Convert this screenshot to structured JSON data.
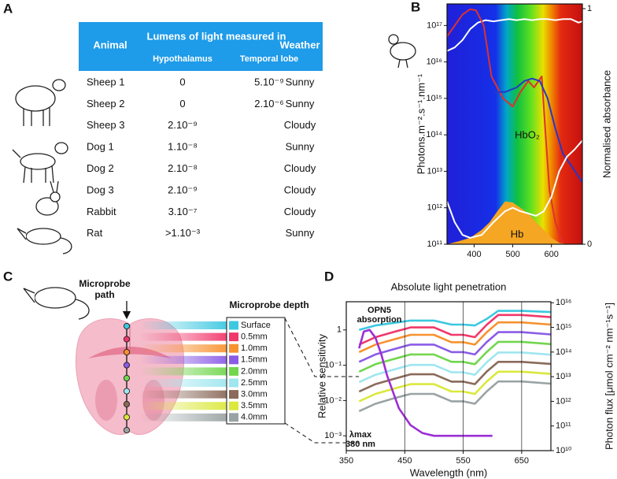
{
  "panel_labels": [
    "A",
    "B",
    "C",
    "D"
  ],
  "table": {
    "header": {
      "animal": "Animal",
      "measured_in": "Lumens of light measured in",
      "hypothalamus": "Hypothalamus",
      "temporal_lobe": "Temporal lobe",
      "weather": "Weather"
    },
    "rows": [
      [
        "Sheep 1",
        "0",
        "5.10⁻⁹",
        "Sunny"
      ],
      [
        "Sheep 2",
        "0",
        "2.10⁻⁶",
        "Sunny"
      ],
      [
        "Sheep 3",
        "2.10⁻⁹",
        null,
        "Cloudy"
      ],
      [
        "Dog 1",
        "1.10⁻⁸",
        null,
        "Sunny"
      ],
      [
        "Dog 2",
        "2.10⁻⁸",
        null,
        "Cloudy"
      ],
      [
        "Dog 3",
        "2.10⁻⁹",
        null,
        "Cloudy"
      ],
      [
        "Rabbit",
        "3.10⁻⁷",
        null,
        "Cloudy"
      ],
      [
        "Rat",
        ">1.10⁻³",
        null,
        "Sunny"
      ]
    ]
  },
  "diagram": {
    "probe_label": [
      "Microprobe",
      "path"
    ],
    "depth_title": "Microprobe depth"
  },
  "chart_data": [
    {
      "type": "line",
      "ylabel": "Photons.m⁻².s⁻¹.nm⁻¹",
      "y2label": "Normalised absorbance",
      "annotations": [
        "HbO₂",
        "Hb"
      ],
      "xlim": [
        330,
        680
      ],
      "xticks": [
        400,
        500,
        600
      ],
      "ylim": [
        100000000000,
        3.9e+17
      ],
      "ylog": true,
      "yticks": [
        {
          "value": 100000000000.0,
          "label": "10¹¹"
        },
        {
          "value": 1000000000000.0,
          "label": "10¹²"
        },
        {
          "value": 10000000000000.0,
          "label": "10¹³"
        },
        {
          "value": 100000000000000.0,
          "label": "10¹⁴"
        },
        {
          "value": 1000000000000000.0,
          "label": "10¹⁵"
        },
        {
          "value": 1e+16,
          "label": "10¹⁶"
        },
        {
          "value": 1e+17,
          "label": "10¹⁷"
        }
      ],
      "y2lim": [
        0,
        1.02
      ],
      "y2ticks": [
        0,
        1
      ],
      "series": [
        {
          "color": "#ffffff",
          "x": [
            330,
            350,
            370,
            390,
            410,
            430,
            450,
            470,
            490,
            510,
            530,
            550,
            570,
            590,
            610,
            630,
            650,
            670,
            680
          ],
          "values": [
            2e+16,
            2.5e+16,
            4e+16,
            8e+16,
            1.2e+17,
            1.4e+17,
            1.3e+17,
            1.4e+17,
            1.5e+17,
            1.4e+17,
            1.5e+17,
            1.4e+17,
            1.5e+17,
            1.5e+17,
            1.4e+17,
            1.5e+17,
            1.5e+17,
            1.2e+17,
            1.3e+17
          ]
        },
        {
          "color": "#e0312b",
          "x": [
            330,
            350,
            370,
            390,
            405,
            425,
            445,
            475,
            500,
            520,
            540,
            555,
            575,
            585,
            595,
            610,
            630
          ],
          "values": [
            5e+16,
            1e+17,
            2e+17,
            2.8e+17,
            2.6e+17,
            1e+17,
            4000000000000000.0,
            1000000000000000.0,
            600000000000000.0,
            1500000000000000.0,
            3000000000000000.0,
            2000000000000000.0,
            4000000000000000.0,
            100000000000000.0,
            3000000000000.0,
            400000000000.0,
            100000000000.0
          ]
        },
        {
          "color": "#2438c8",
          "x": [
            450,
            480,
            510,
            530,
            550,
            570,
            590,
            610,
            630,
            650,
            680
          ],
          "values": [
            1500000000000000.0,
            1500000000000000.0,
            2000000000000000.0,
            3000000000000000.0,
            3500000000000000.0,
            3000000000000000.0,
            1000000000000000.0,
            150000000000000.0,
            30000000000000.0,
            15000000000000.0,
            5000000000000.0
          ]
        },
        {
          "color": "#f5a623",
          "style": "area",
          "x": [
            330,
            360,
            390,
            420,
            440,
            460,
            480,
            500,
            520,
            540,
            560,
            580,
            600,
            620,
            640
          ],
          "values": [
            100000000000.0,
            120000000000.0,
            150000000000.0,
            250000000000.0,
            400000000000.0,
            800000000000.0,
            1500000000000.0,
            1400000000000.0,
            1000000000000.0,
            700000000000.0,
            400000000000.0,
            250000000000.0,
            150000000000.0,
            110000000000.0,
            100000000000.0
          ]
        },
        {
          "color": "#ffffff",
          "x": [
            330,
            350,
            370,
            390,
            420,
            450,
            480,
            500,
            520,
            540,
            560,
            580,
            600,
            620,
            640,
            660,
            680
          ],
          "values": [
            1500000000000.0,
            400000000000.0,
            180000000000.0,
            150000000000.0,
            180000000000.0,
            400000000000.0,
            800000000000.0,
            1000000000000.0,
            800000000000.0,
            700000000000.0,
            600000000000.0,
            800000000000.0,
            2000000000000.0,
            10000000000000.0,
            25000000000000.0,
            40000000000000.0,
            70000000000000.0
          ]
        }
      ]
    },
    {
      "type": "line",
      "title": "Absolute light penetration",
      "xlabel": "Wavelength (nm)",
      "ylabel": "Relative sensitivity",
      "y2label": "Photon flux [μmol cm⁻² nm⁻¹s⁻¹]",
      "annotations": [
        "absorption",
        "λmax",
        "380 nm"
      ],
      "xlim": [
        350,
        700
      ],
      "xticks": [
        350,
        450,
        550,
        650
      ],
      "xgrid": true,
      "ylim": [
        0.00038,
        6.3
      ],
      "ylog": true,
      "yticks": [
        {
          "value": 0.001,
          "label": "10⁻³"
        },
        {
          "value": 0.01,
          "label": "10⁻²"
        },
        {
          "value": 0.1,
          "label": "10⁻¹"
        },
        1
      ],
      "y2lim": [
        10000000000,
        1.1e+16
      ],
      "y2log": true,
      "y2ticks": [
        {
          "value": 10000000000.0,
          "label": "10¹⁰"
        },
        {
          "value": 100000000000.0,
          "label": "10¹¹"
        },
        {
          "value": 1000000000000.0,
          "label": "10¹²"
        },
        {
          "value": 10000000000000.0,
          "label": "10¹³"
        },
        {
          "value": 100000000000000.0,
          "label": "10¹⁴"
        },
        {
          "value": 1000000000000000.0,
          "label": "10¹⁵"
        },
        {
          "value": 1e+16,
          "label": "10¹⁶"
        }
      ],
      "x": [
        372,
        400,
        430,
        460,
        500,
        530,
        550,
        570,
        590,
        610,
        650,
        700
      ],
      "series": [
        {
          "name": "Surface",
          "color": "#3cc8e0",
          "axis": "y2",
          "values": [
            790000000000000.0,
            1200000000000000.0,
            1500000000000000.0,
            1900000000000000.0,
            1900000000000000.0,
            1300000000000000.0,
            1300000000000000.0,
            1200000000000000.0,
            2200000000000000.0,
            4700000000000000.0,
            4700000000000000.0,
            4200000000000000.0
          ]
        },
        {
          "name": "0.5mm",
          "color": "#f0386b",
          "axis": "y2",
          "values": [
            200000000000000.0,
            400000000000000.0,
            640000000000000.0,
            1000000000000000.0,
            1000000000000000.0,
            500000000000000.0,
            500000000000000.0,
            400000000000000.0,
            1260000000000000.0,
            3200000000000000.0,
            3200000000000000.0,
            2600000000000000.0
          ]
        },
        {
          "name": "1.0mm",
          "color": "#f7922f",
          "axis": "y2",
          "values": [
            100000000000000.0,
            200000000000000.0,
            320000000000000.0,
            500000000000000.0,
            500000000000000.0,
            250000000000000.0,
            250000000000000.0,
            200000000000000.0,
            630000000000000.0,
            1600000000000000.0,
            1600000000000000.0,
            1300000000000000.0
          ]
        },
        {
          "name": "1.5mm",
          "color": "#8a5ce6",
          "axis": "y2",
          "values": [
            40000000000000.0,
            80000000000000.0,
            128000000000000.0,
            200000000000000.0,
            200000000000000.0,
            100000000000000.0,
            100000000000000.0,
            80000000000000.0,
            250000000000000.0,
            640000000000000.0,
            640000000000000.0,
            520000000000000.0
          ]
        },
        {
          "name": "2.0mm",
          "color": "#72d64f",
          "axis": "y2",
          "values": [
            16000000000000.0,
            32000000000000.0,
            51000000000000.0,
            80000000000000.0,
            80000000000000.0,
            40000000000000.0,
            40000000000000.0,
            32000000000000.0,
            100000000000000.0,
            260000000000000.0,
            260000000000000.0,
            210000000000000.0
          ]
        },
        {
          "name": "2.5mm",
          "color": "#9fe6ef",
          "axis": "y2",
          "values": [
            6000000000000.0,
            12000000000000.0,
            19000000000000.0,
            30000000000000.0,
            30000000000000.0,
            15000000000000.0,
            15000000000000.0,
            12000000000000.0,
            38000000000000.0,
            96000000000000.0,
            96000000000000.0,
            78000000000000.0
          ]
        },
        {
          "name": "3.0mm",
          "color": "#8b6a5a",
          "axis": "y2",
          "values": [
            2500000000000.0,
            5000000000000.0,
            8000000000000.0,
            12500000000000.0,
            12500000000000.0,
            6300000000000.0,
            6300000000000.0,
            5000000000000.0,
            16000000000000.0,
            40000000000000.0,
            40000000000000.0,
            33000000000000.0
          ]
        },
        {
          "name": "3.5mm",
          "color": "#dbe83c",
          "axis": "y2",
          "values": [
            1000000000000.0,
            2000000000000.0,
            3200000000000.0,
            5000000000000.0,
            5000000000000.0,
            2500000000000.0,
            2500000000000.0,
            2000000000000.0,
            6300000000000.0,
            16000000000000.0,
            16000000000000.0,
            13000000000000.0
          ]
        },
        {
          "name": "4.0mm",
          "color": "#9aa3a3",
          "axis": "y2",
          "values": [
            400000000000.0,
            800000000000.0,
            1300000000000.0,
            2000000000000.0,
            2000000000000.0,
            1000000000000.0,
            1000000000000.0,
            800000000000.0,
            2500000000000.0,
            6400000000000.0,
            6400000000000.0,
            5200000000000.0
          ]
        },
        {
          "name": "OPN5",
          "color": "#9b2fd4",
          "axis": "y",
          "x": [
            372,
            380,
            390,
            400,
            410,
            420,
            440,
            460,
            480,
            500,
            550,
            600
          ],
          "values": [
            0.3,
            0.9,
            1,
            0.6,
            0.2,
            0.05,
            0.006,
            0.002,
            0.0012,
            0.001,
            0.001,
            0.001
          ]
        }
      ]
    }
  ]
}
